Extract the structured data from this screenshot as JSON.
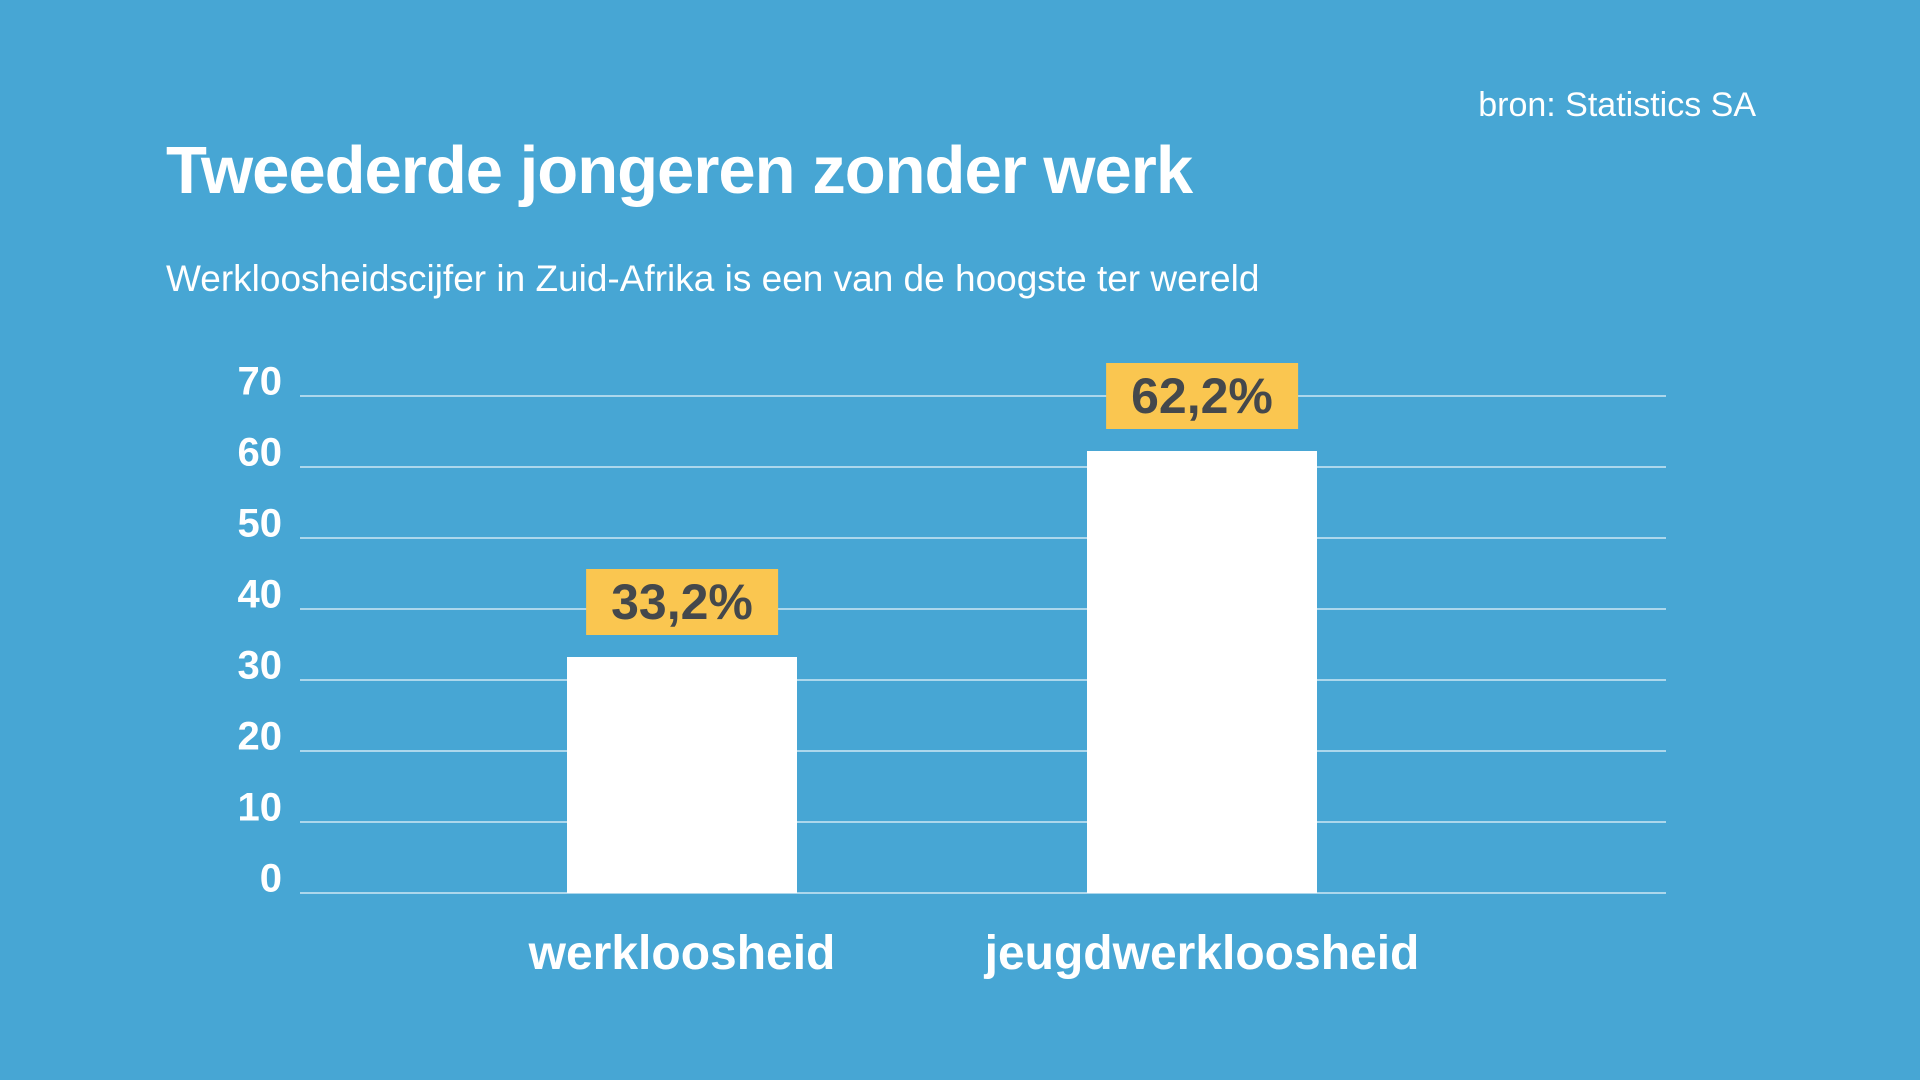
{
  "page": {
    "source_label": "bron: Statistics SA",
    "title": "Tweederde jongeren zonder werk",
    "subtitle": "Werkloosheidscijfer in Zuid-Afrika is een van de hoogste ter wereld"
  },
  "colors": {
    "background": "#47A6D4",
    "text": "#FFFFFF",
    "bar": "#FFFFFF",
    "gridline": "rgba(255,255,255,0.55)",
    "value_label_bg": "#FAC650",
    "value_label_text": "#44484C"
  },
  "chart_data": {
    "type": "bar",
    "title": "Tweederde jongeren zonder werk",
    "subtitle": "Werkloosheidscijfer in Zuid-Afrika is een van de hoogste ter wereld",
    "source": "bron: Statistics SA",
    "categories": [
      "werkloosheid",
      "jeugdwerkloosheid"
    ],
    "values": [
      33.2,
      62.2
    ],
    "value_labels": [
      "33,2%",
      "62,2%"
    ],
    "ylim": [
      0,
      70
    ],
    "yticks": [
      0,
      10,
      20,
      30,
      40,
      50,
      60,
      70
    ],
    "grid": true,
    "legend": false,
    "bar_color": "#FFFFFF",
    "label_bg_color": "#FAC650",
    "label_text_color": "#44484C"
  }
}
